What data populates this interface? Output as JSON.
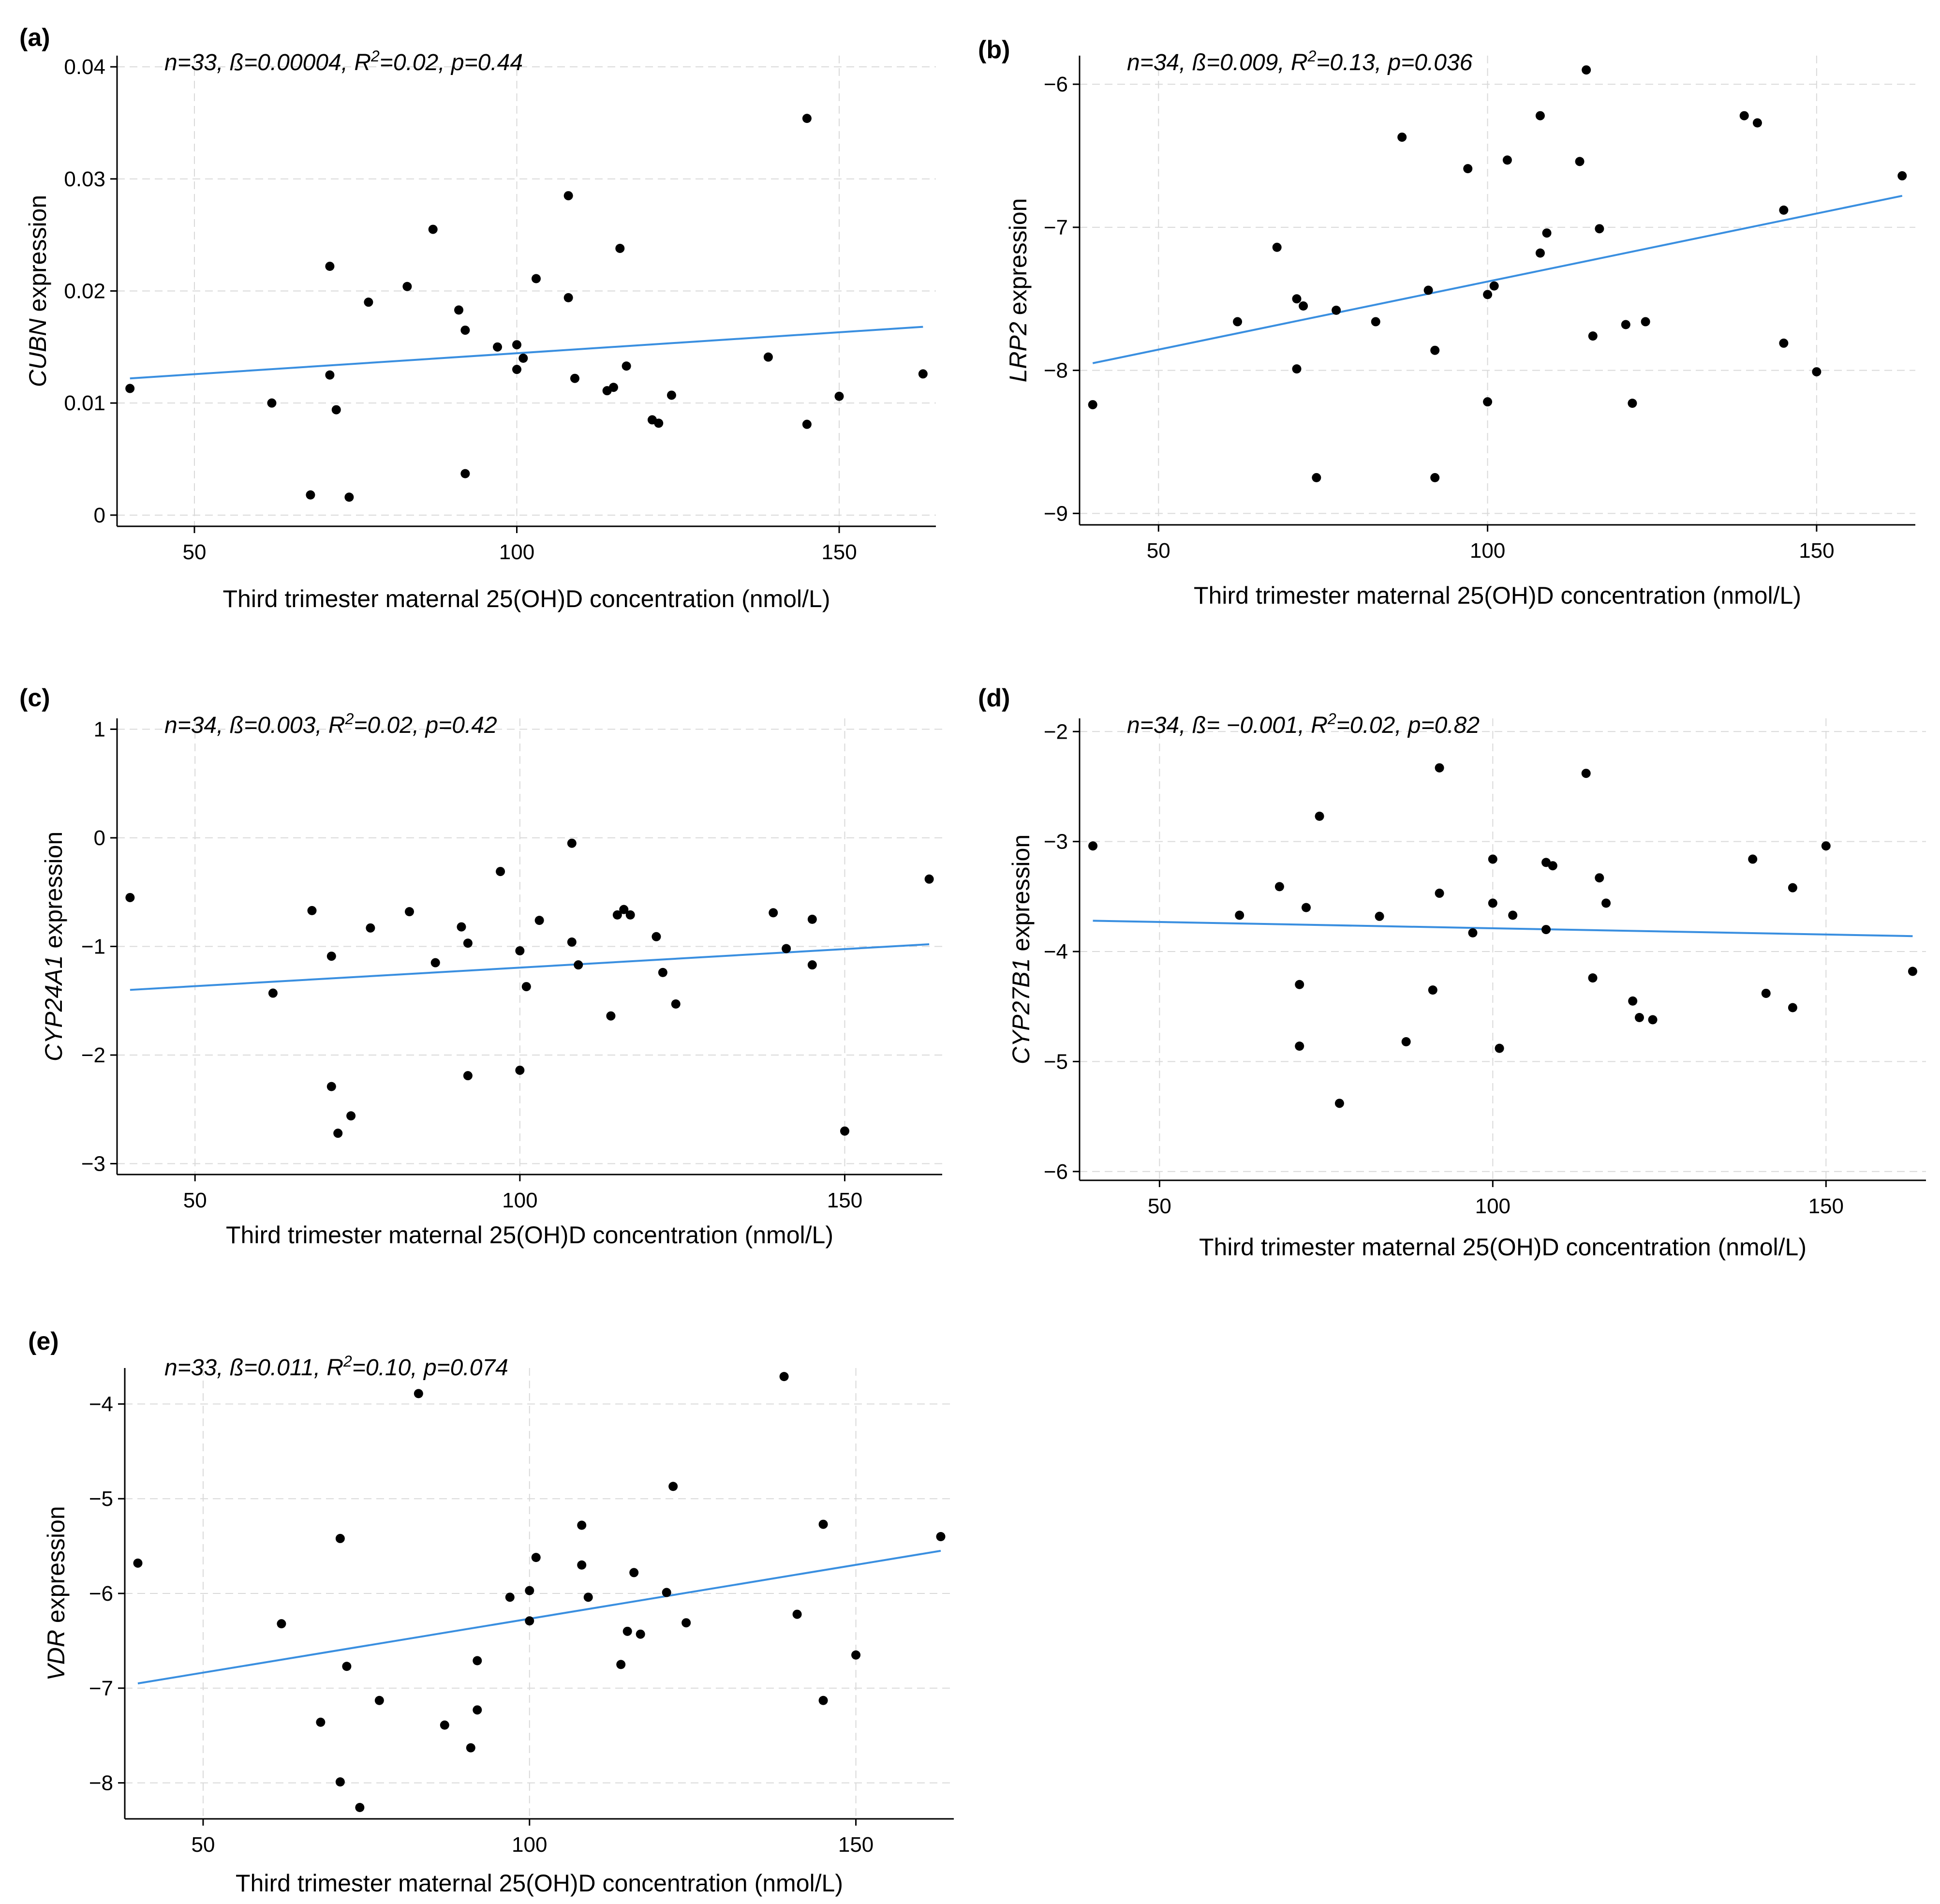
{
  "colors": {
    "fit_line": "#3a8fe0",
    "points": "#000000",
    "grid": "#d9d9d9"
  },
  "chart_data": [
    {
      "type": "scatter",
      "panel_label": "(a)",
      "stats_parts": [
        "n=33, ß=0.00004, R",
        "2",
        "=0.02, p=0.44"
      ],
      "ylabel_gene": "CUBN",
      "ylabel_rest": "expression",
      "xlabel": "Third trimester maternal 25(OH)D concentration (nmol/L)",
      "xlim": [
        38,
        165
      ],
      "ylim": [
        -0.001,
        0.041
      ],
      "xticks": [
        50,
        100,
        150
      ],
      "xtick_labels": [
        "50",
        "100",
        "150"
      ],
      "yticks": [
        0,
        0.01,
        0.02,
        0.03,
        0.04
      ],
      "ytick_labels": [
        "0",
        "0.01",
        "0.02",
        "0.03",
        "0.04"
      ],
      "fit": {
        "x": [
          40,
          163
        ],
        "y": [
          0.0122,
          0.0168
        ]
      },
      "points": [
        [
          40,
          0.0113
        ],
        [
          62,
          0.01
        ],
        [
          68,
          0.0018
        ],
        [
          71,
          0.0222
        ],
        [
          71,
          0.0125
        ],
        [
          72,
          0.0094
        ],
        [
          74,
          0.0016
        ],
        [
          77,
          0.019
        ],
        [
          83,
          0.0204
        ],
        [
          87,
          0.0255
        ],
        [
          91,
          0.0183
        ],
        [
          92,
          0.0165
        ],
        [
          92,
          0.0037
        ],
        [
          97,
          0.015
        ],
        [
          100,
          0.0152
        ],
        [
          100,
          0.013
        ],
        [
          101,
          0.014
        ],
        [
          103,
          0.0211
        ],
        [
          108,
          0.0285
        ],
        [
          108,
          0.0194
        ],
        [
          109,
          0.0122
        ],
        [
          114,
          0.0111
        ],
        [
          115,
          0.0114
        ],
        [
          116,
          0.0238
        ],
        [
          117,
          0.0133
        ],
        [
          121,
          0.0085
        ],
        [
          122,
          0.0082
        ],
        [
          124,
          0.0107
        ],
        [
          139,
          0.0141
        ],
        [
          145,
          0.0354
        ],
        [
          145,
          0.0081
        ],
        [
          150,
          0.0106
        ],
        [
          163,
          0.0126
        ]
      ]
    },
    {
      "type": "scatter",
      "panel_label": "(b)",
      "stats_parts": [
        "n=34, ß=0.009, R",
        "2",
        "=0.13, p=0.036"
      ],
      "ylabel_gene": "LRP2",
      "ylabel_rest": "expression",
      "xlabel": "Third trimester maternal 25(OH)D concentration (nmol/L)",
      "xlim": [
        38,
        165
      ],
      "ylim": [
        -9.08,
        -5.8
      ],
      "xticks": [
        50,
        100,
        150
      ],
      "xtick_labels": [
        "50",
        "100",
        "150"
      ],
      "yticks": [
        -9,
        -8,
        -7,
        -6
      ],
      "ytick_labels": [
        "−9",
        "−8",
        "−7",
        "−6"
      ],
      "fit": {
        "x": [
          40,
          163
        ],
        "y": [
          -7.95,
          -6.78
        ]
      },
      "points": [
        [
          40,
          -8.24
        ],
        [
          62,
          -7.66
        ],
        [
          68,
          -7.14
        ],
        [
          71,
          -7.5
        ],
        [
          71,
          -7.99
        ],
        [
          72,
          -7.55
        ],
        [
          74,
          -8.75
        ],
        [
          77,
          -7.58
        ],
        [
          83,
          -7.66
        ],
        [
          87,
          -6.37
        ],
        [
          91,
          -7.44
        ],
        [
          92,
          -7.86
        ],
        [
          92,
          -8.75
        ],
        [
          97,
          -6.59
        ],
        [
          100,
          -7.47
        ],
        [
          100,
          -8.22
        ],
        [
          101,
          -7.41
        ],
        [
          103,
          -6.53
        ],
        [
          108,
          -6.22
        ],
        [
          108,
          -7.18
        ],
        [
          109,
          -7.04
        ],
        [
          114,
          -6.54
        ],
        [
          115,
          -5.9
        ],
        [
          116,
          -7.76
        ],
        [
          117,
          -7.01
        ],
        [
          121,
          -7.68
        ],
        [
          122,
          -8.23
        ],
        [
          124,
          -7.66
        ],
        [
          139,
          -6.22
        ],
        [
          141,
          -6.27
        ],
        [
          145,
          -6.88
        ],
        [
          145,
          -7.81
        ],
        [
          150,
          -8.01
        ],
        [
          163,
          -6.64
        ]
      ]
    },
    {
      "type": "scatter",
      "panel_label": "(c)",
      "stats_parts": [
        "n=34, ß=0.003, R",
        "2",
        "=0.02, p=0.42"
      ],
      "ylabel_gene": "CYP24A1",
      "ylabel_rest": "expression",
      "xlabel": "Third trimester maternal 25(OH)D concentration (nmol/L)",
      "xlim": [
        38,
        165
      ],
      "ylim": [
        -3.1,
        1.1
      ],
      "xticks": [
        50,
        100,
        150
      ],
      "xtick_labels": [
        "50",
        "100",
        "150"
      ],
      "yticks": [
        -3,
        -2,
        -1,
        0,
        1
      ],
      "ytick_labels": [
        "−3",
        "−2",
        "−1",
        "0",
        "1"
      ],
      "fit": {
        "x": [
          40,
          163
        ],
        "y": [
          -1.4,
          -0.98
        ]
      },
      "points": [
        [
          40,
          -0.55
        ],
        [
          62,
          -1.43
        ],
        [
          68,
          -0.67
        ],
        [
          71,
          -2.29
        ],
        [
          71,
          -1.09
        ],
        [
          72,
          -2.72
        ],
        [
          74,
          -2.56
        ],
        [
          77,
          -0.83
        ],
        [
          83,
          -0.68
        ],
        [
          87,
          -1.15
        ],
        [
          91,
          -0.82
        ],
        [
          92,
          -0.97
        ],
        [
          92,
          -2.19
        ],
        [
          97,
          -0.31
        ],
        [
          100,
          -1.04
        ],
        [
          100,
          -2.14
        ],
        [
          101,
          -1.37
        ],
        [
          103,
          -0.76
        ],
        [
          108,
          -0.05
        ],
        [
          108,
          -0.96
        ],
        [
          109,
          -1.17
        ],
        [
          114,
          -1.64
        ],
        [
          115,
          -0.71
        ],
        [
          116,
          -0.66
        ],
        [
          117,
          -0.71
        ],
        [
          121,
          -0.91
        ],
        [
          122,
          -1.24
        ],
        [
          124,
          -1.53
        ],
        [
          139,
          -0.69
        ],
        [
          141,
          -1.02
        ],
        [
          145,
          -0.75
        ],
        [
          145,
          -1.17
        ],
        [
          150,
          -2.7
        ],
        [
          163,
          -0.38
        ]
      ]
    },
    {
      "type": "scatter",
      "panel_label": "(d)",
      "stats_parts": [
        "n=34, ß= −0.001, R",
        "2",
        "=0.02, p=0.82"
      ],
      "ylabel_gene": "CYP27B1",
      "ylabel_rest": "expression",
      "xlabel": "Third trimester maternal 25(OH)D concentration (nmol/L)",
      "xlim": [
        38,
        165
      ],
      "ylim": [
        -6.08,
        -1.88
      ],
      "xticks": [
        50,
        100,
        150
      ],
      "xtick_labels": [
        "50",
        "100",
        "150"
      ],
      "yticks": [
        -6,
        -5,
        -4,
        -3,
        -2
      ],
      "ytick_labels": [
        "−6",
        "−5",
        "−4",
        "−3",
        "−2"
      ],
      "fit": {
        "x": [
          40,
          163
        ],
        "y": [
          -3.72,
          -3.86
        ]
      },
      "points": [
        [
          40,
          -3.04
        ],
        [
          62,
          -3.67
        ],
        [
          68,
          -3.41
        ],
        [
          71,
          -4.3
        ],
        [
          71,
          -4.86
        ],
        [
          72,
          -3.6
        ],
        [
          74,
          -2.77
        ],
        [
          77,
          -5.38
        ],
        [
          83,
          -3.68
        ],
        [
          87,
          -4.82
        ],
        [
          91,
          -4.35
        ],
        [
          92,
          -3.47
        ],
        [
          92,
          -2.33
        ],
        [
          97,
          -3.83
        ],
        [
          100,
          -3.16
        ],
        [
          100,
          -3.56
        ],
        [
          101,
          -4.88
        ],
        [
          103,
          -3.67
        ],
        [
          108,
          -3.19
        ],
        [
          108,
          -3.8
        ],
        [
          109,
          -3.22
        ],
        [
          114,
          -2.38
        ],
        [
          115,
          -4.24
        ],
        [
          116,
          -3.33
        ],
        [
          117,
          -3.56
        ],
        [
          121,
          -4.45
        ],
        [
          122,
          -4.6
        ],
        [
          124,
          -4.62
        ],
        [
          139,
          -3.16
        ],
        [
          141,
          -4.38
        ],
        [
          145,
          -3.42
        ],
        [
          145,
          -4.51
        ],
        [
          150,
          -3.04
        ],
        [
          163,
          -4.18
        ]
      ]
    },
    {
      "type": "scatter",
      "panel_label": "(e)",
      "stats_parts": [
        "n=33, ß=0.011, R",
        "2",
        "=0.10, p=0.074"
      ],
      "ylabel_gene": "VDR",
      "ylabel_rest": "expression",
      "xlabel": "Third trimester maternal 25(OH)D concentration (nmol/L)",
      "xlim": [
        38,
        165
      ],
      "ylim": [
        -8.38,
        -3.62
      ],
      "xticks": [
        50,
        100,
        150
      ],
      "xtick_labels": [
        "50",
        "100",
        "150"
      ],
      "yticks": [
        -8,
        -7,
        -6,
        -5,
        -4
      ],
      "ytick_labels": [
        "−8",
        "−7",
        "−6",
        "−5",
        "−4"
      ],
      "fit": {
        "x": [
          40,
          163
        ],
        "y": [
          -6.95,
          -5.55
        ]
      },
      "points": [
        [
          40,
          -5.68
        ],
        [
          62,
          -6.32
        ],
        [
          68,
          -7.36
        ],
        [
          71,
          -5.42
        ],
        [
          71,
          -7.99
        ],
        [
          72,
          -6.77
        ],
        [
          74,
          -8.26
        ],
        [
          77,
          -7.13
        ],
        [
          83,
          -3.89
        ],
        [
          87,
          -7.39
        ],
        [
          91,
          -7.63
        ],
        [
          92,
          -6.71
        ],
        [
          92,
          -7.23
        ],
        [
          97,
          -6.04
        ],
        [
          100,
          -5.97
        ],
        [
          100,
          -6.29
        ],
        [
          101,
          -5.62
        ],
        [
          108,
          -5.28
        ],
        [
          108,
          -5.7
        ],
        [
          109,
          -6.04
        ],
        [
          114,
          -6.75
        ],
        [
          115,
          -6.4
        ],
        [
          116,
          -5.78
        ],
        [
          117,
          -6.43
        ],
        [
          121,
          -5.99
        ],
        [
          122,
          -4.87
        ],
        [
          124,
          -6.31
        ],
        [
          139,
          -3.71
        ],
        [
          141,
          -6.22
        ],
        [
          145,
          -5.27
        ],
        [
          145,
          -7.13
        ],
        [
          150,
          -6.65
        ],
        [
          163,
          -5.4
        ]
      ]
    }
  ]
}
